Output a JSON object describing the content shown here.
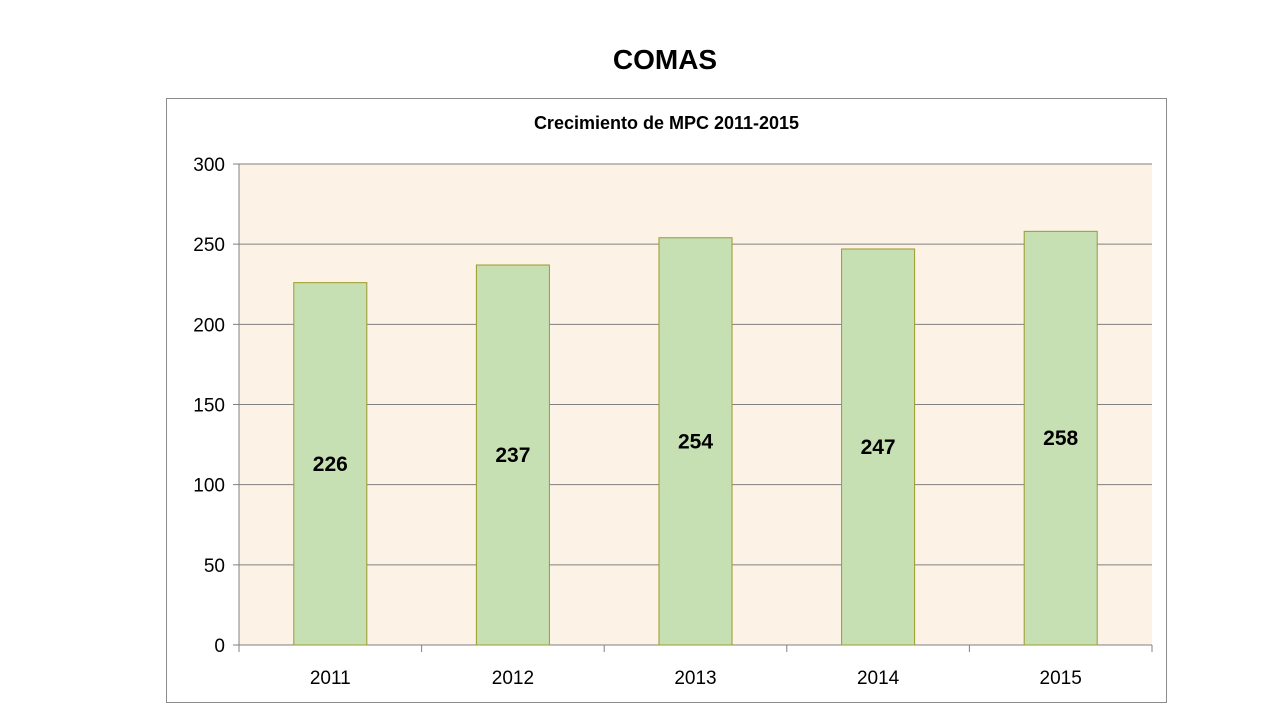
{
  "slide": {
    "title": "COMAS"
  },
  "colors": {
    "plot_bg": "#fdf2e6",
    "bar_fill": "#c6e0b4",
    "bar_stroke": "#9b9b2a",
    "grid": "#808080"
  },
  "chart_data": {
    "type": "bar",
    "title": "Crecimiento de MPC 2011-2015",
    "xlabel": "",
    "ylabel": "",
    "categories": [
      "2011",
      "2012",
      "2013",
      "2014",
      "2015"
    ],
    "values": [
      226,
      237,
      254,
      247,
      258
    ],
    "ylim": [
      0,
      300
    ],
    "yticks": [
      0,
      50,
      100,
      150,
      200,
      250,
      300
    ],
    "grid": true,
    "legend": "none",
    "data_labels": true
  }
}
